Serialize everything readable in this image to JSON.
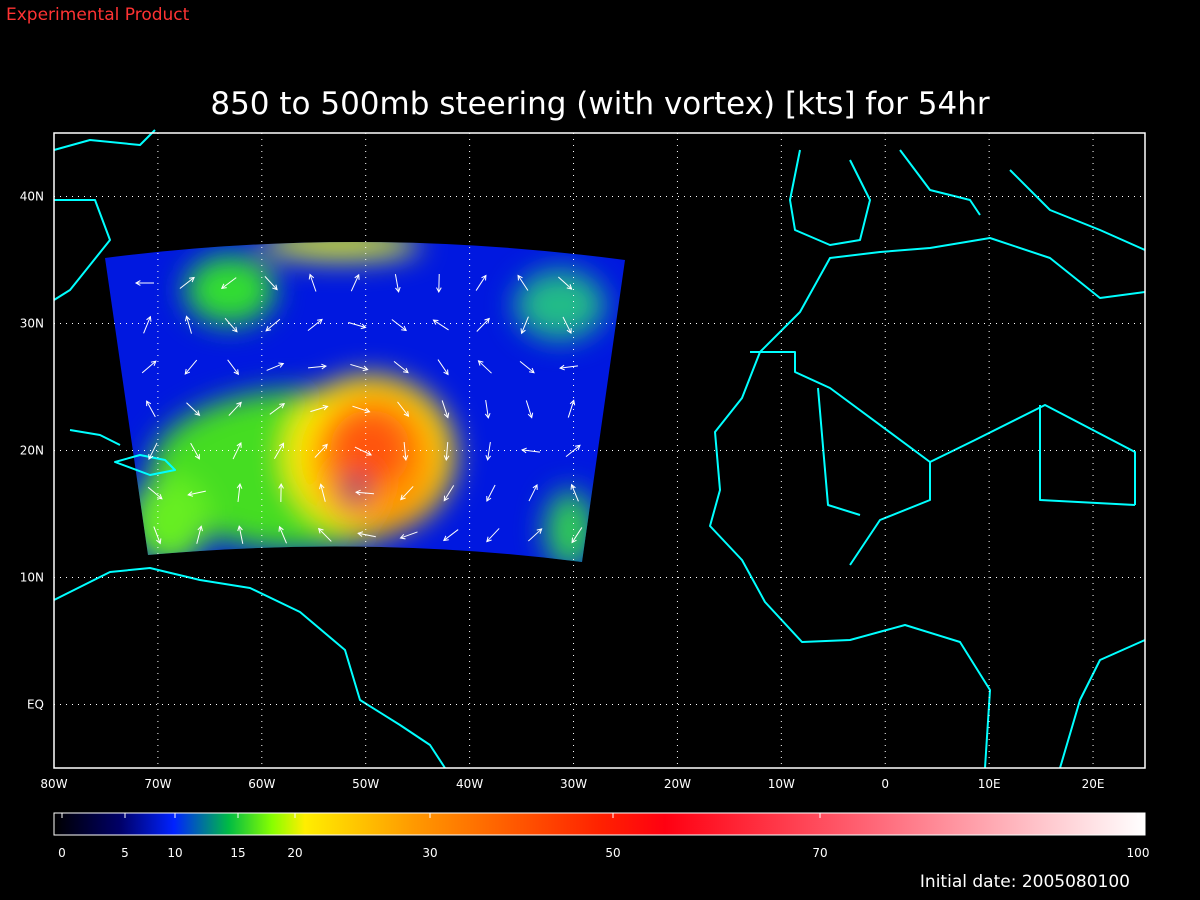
{
  "header": {
    "product": "Experimental Product",
    "title": "850 to 500mb steering (with vortex) [kts] for 54hr"
  },
  "map": {
    "xlim": [
      -80,
      25
    ],
    "ylim": [
      -5,
      45
    ],
    "xticks": [
      {
        "value": -80,
        "label": "80W"
      },
      {
        "value": -70,
        "label": "70W"
      },
      {
        "value": -60,
        "label": "60W"
      },
      {
        "value": -50,
        "label": "50W"
      },
      {
        "value": -40,
        "label": "40W"
      },
      {
        "value": -30,
        "label": "30W"
      },
      {
        "value": -20,
        "label": "20W"
      },
      {
        "value": -10,
        "label": "10W"
      },
      0,
      {
        "value": 10,
        "label": "10E"
      },
      {
        "value": 20,
        "label": "20E"
      }
    ],
    "yticks": [
      {
        "value": 0,
        "label": "EQ"
      },
      {
        "value": 10,
        "label": "10N"
      },
      {
        "value": 20,
        "label": "20N"
      },
      {
        "value": 30,
        "label": "30N"
      },
      {
        "value": 40,
        "label": "40N"
      }
    ]
  },
  "colorbar": {
    "ticks": [
      0,
      5,
      10,
      15,
      20,
      30,
      50,
      70,
      100
    ]
  },
  "footer": {
    "initial_date": "Initial date: 2005080100"
  }
}
